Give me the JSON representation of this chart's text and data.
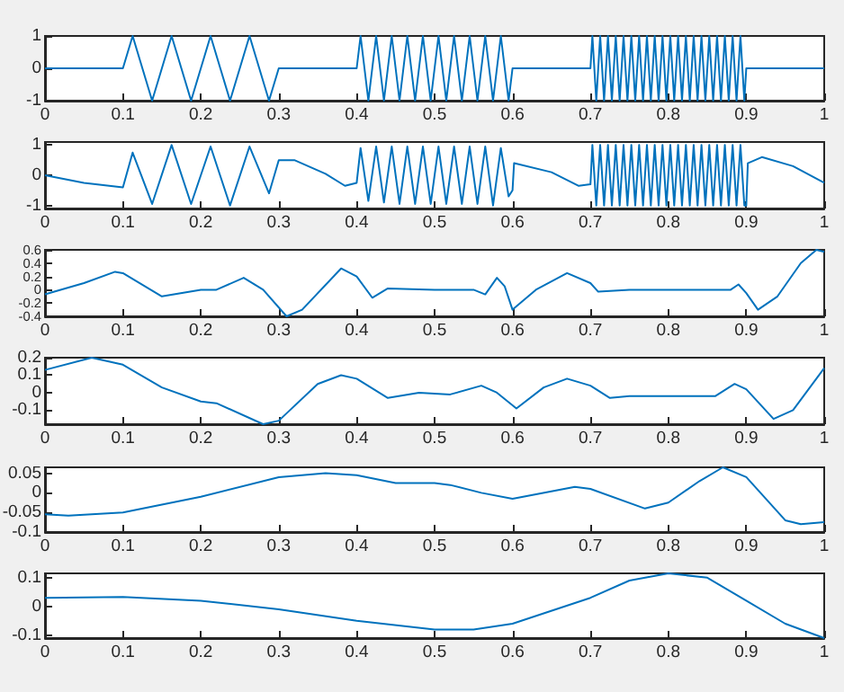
{
  "chart_data": [
    {
      "type": "line",
      "color": "#0072bd",
      "xlim": [
        0,
        1
      ],
      "xticks": [
        0,
        0.1,
        0.2,
        0.3,
        0.4,
        0.5,
        0.6,
        0.7,
        0.8,
        0.9,
        1
      ],
      "ylim": [
        -1,
        1
      ],
      "yticks": [
        -1,
        0,
        1
      ],
      "grid": false,
      "marker": "none",
      "x": [
        0,
        0.1,
        0.1125,
        0.125,
        0.1375,
        0.15,
        0.1625,
        0.175,
        0.1875,
        0.2,
        0.2125,
        0.225,
        0.2375,
        0.25,
        0.2625,
        0.275,
        0.2875,
        0.3,
        0.4,
        0.405,
        0.415,
        0.425,
        0.435,
        0.445,
        0.455,
        0.465,
        0.475,
        0.485,
        0.495,
        0.505,
        0.515,
        0.525,
        0.535,
        0.545,
        0.555,
        0.565,
        0.575,
        0.585,
        0.595,
        0.6,
        0.7,
        0.7025,
        0.7075,
        0.7125,
        0.7175,
        0.7225,
        0.7275,
        0.7325,
        0.7375,
        0.7425,
        0.7475,
        0.7525,
        0.7575,
        0.7625,
        0.7675,
        0.7725,
        0.7775,
        0.7825,
        0.7875,
        0.7925,
        0.7975,
        0.8025,
        0.8075,
        0.8125,
        0.8175,
        0.8225,
        0.8275,
        0.8325,
        0.8375,
        0.8425,
        0.8475,
        0.8525,
        0.8575,
        0.8625,
        0.8675,
        0.8725,
        0.8775,
        0.8825,
        0.8875,
        0.8925,
        0.8975,
        0.9,
        1
      ],
      "values": [
        0,
        0,
        1,
        0,
        -1,
        0,
        1,
        0,
        -1,
        0,
        1,
        0,
        -1,
        0,
        1,
        0,
        -1,
        0,
        0,
        1,
        -1,
        1,
        -1,
        1,
        -1,
        1,
        -1,
        1,
        -1,
        1,
        -1,
        1,
        -1,
        1,
        -1,
        1,
        -1,
        1,
        -1,
        0,
        0,
        1,
        -1,
        1,
        -1,
        1,
        -1,
        1,
        -1,
        1,
        -1,
        1,
        -1,
        1,
        -1,
        1,
        -1,
        1,
        -1,
        1,
        -1,
        1,
        -1,
        1,
        -1,
        1,
        -1,
        1,
        -1,
        1,
        -1,
        1,
        -1,
        1,
        -1,
        1,
        -1,
        1,
        -1,
        1,
        -1,
        0,
        0
      ]
    },
    {
      "type": "line",
      "color": "#0072bd",
      "xlim": [
        0,
        1
      ],
      "xticks": [
        0,
        0.1,
        0.2,
        0.3,
        0.4,
        0.5,
        0.6,
        0.7,
        0.8,
        0.9,
        1
      ],
      "ylim": [
        -1.1,
        1.1
      ],
      "yticks": [
        -1,
        0,
        1
      ],
      "grid": false,
      "marker": "none",
      "x": [
        0,
        0.05,
        0.1,
        0.1125,
        0.1375,
        0.1625,
        0.1875,
        0.2125,
        0.2375,
        0.2625,
        0.2875,
        0.3,
        0.32,
        0.36,
        0.385,
        0.4,
        0.405,
        0.415,
        0.425,
        0.435,
        0.445,
        0.455,
        0.465,
        0.475,
        0.485,
        0.495,
        0.505,
        0.515,
        0.525,
        0.535,
        0.545,
        0.555,
        0.565,
        0.575,
        0.585,
        0.595,
        0.6,
        0.602,
        0.65,
        0.685,
        0.7,
        0.7025,
        0.7075,
        0.7125,
        0.7175,
        0.7225,
        0.7275,
        0.7325,
        0.7375,
        0.7425,
        0.7475,
        0.7525,
        0.7575,
        0.7625,
        0.7675,
        0.7725,
        0.7775,
        0.7825,
        0.7875,
        0.7925,
        0.7975,
        0.8025,
        0.8075,
        0.8125,
        0.8175,
        0.8225,
        0.8275,
        0.8325,
        0.8375,
        0.8425,
        0.8475,
        0.8525,
        0.8575,
        0.8625,
        0.8675,
        0.8725,
        0.8775,
        0.8825,
        0.8875,
        0.8925,
        0.8975,
        0.9,
        0.902,
        0.92,
        0.96,
        1
      ],
      "values": [
        0,
        -0.25,
        -0.4,
        0.75,
        -0.95,
        1,
        -0.95,
        0.95,
        -1,
        0.95,
        -0.6,
        0.5,
        0.5,
        0.05,
        -0.35,
        -0.25,
        0.9,
        -0.85,
        0.95,
        -0.9,
        0.95,
        -0.95,
        0.95,
        -0.95,
        0.95,
        -0.95,
        0.95,
        -0.95,
        0.95,
        -0.95,
        0.95,
        -0.95,
        0.95,
        -1,
        0.9,
        -0.7,
        -0.5,
        0.4,
        0.1,
        -0.35,
        -0.3,
        1,
        -1,
        1,
        -1,
        1,
        -1,
        1,
        -1,
        1,
        -1,
        1,
        -1,
        1,
        -1,
        1,
        -1,
        1,
        -1,
        1,
        -1,
        1,
        -1,
        1,
        -1,
        1,
        -1,
        1,
        -1,
        1,
        -1,
        1,
        -1,
        1,
        -1,
        1,
        -1,
        1,
        -1,
        1,
        -1,
        -1,
        0.4,
        0.6,
        0.3,
        -0.25
      ]
    },
    {
      "type": "line",
      "color": "#0072bd",
      "xlim": [
        0,
        1
      ],
      "xticks": [
        0,
        0.1,
        0.2,
        0.3,
        0.4,
        0.5,
        0.6,
        0.7,
        0.8,
        0.9,
        1
      ],
      "ylim": [
        -0.4,
        0.6
      ],
      "yticks": [
        -0.4,
        -0.2,
        0,
        0.2,
        0.4,
        0.6
      ],
      "grid": false,
      "marker": "none",
      "x": [
        0,
        0.05,
        0.09,
        0.1,
        0.15,
        0.2,
        0.22,
        0.255,
        0.28,
        0.31,
        0.33,
        0.38,
        0.4,
        0.42,
        0.44,
        0.5,
        0.55,
        0.565,
        0.58,
        0.59,
        0.6,
        0.63,
        0.67,
        0.7,
        0.71,
        0.75,
        0.88,
        0.89,
        0.9,
        0.915,
        0.94,
        0.97,
        0.99,
        1
      ],
      "values": [
        -0.07,
        0.1,
        0.27,
        0.25,
        -0.1,
        0,
        0,
        0.18,
        0,
        -0.4,
        -0.3,
        0.32,
        0.2,
        -0.12,
        0.02,
        0,
        0,
        -0.07,
        0.18,
        0.05,
        -0.3,
        0,
        0.25,
        0.1,
        -0.03,
        0,
        0,
        0.08,
        -0.05,
        -0.3,
        -0.1,
        0.4,
        0.6,
        0.57
      ]
    },
    {
      "type": "line",
      "color": "#0072bd",
      "xlim": [
        0,
        1
      ],
      "xticks": [
        0,
        0.1,
        0.2,
        0.3,
        0.4,
        0.5,
        0.6,
        0.7,
        0.8,
        0.9,
        1
      ],
      "ylim": [
        -0.18,
        0.2
      ],
      "yticks": [
        -0.1,
        0,
        0.1,
        0.2
      ],
      "grid": false,
      "marker": "none",
      "x": [
        0,
        0.06,
        0.1,
        0.15,
        0.2,
        0.22,
        0.28,
        0.3,
        0.35,
        0.38,
        0.4,
        0.44,
        0.48,
        0.52,
        0.56,
        0.58,
        0.605,
        0.64,
        0.67,
        0.7,
        0.725,
        0.75,
        0.86,
        0.885,
        0.9,
        0.935,
        0.96,
        1
      ],
      "values": [
        0.13,
        0.2,
        0.16,
        0.03,
        -0.05,
        -0.06,
        -0.18,
        -0.16,
        0.05,
        0.1,
        0.08,
        -0.03,
        0,
        -0.01,
        0.04,
        0,
        -0.09,
        0.03,
        0.08,
        0.04,
        -0.03,
        -0.02,
        -0.02,
        0.05,
        0.02,
        -0.15,
        -0.1,
        0.14
      ]
    },
    {
      "type": "line",
      "color": "#0072bd",
      "xlim": [
        0,
        1
      ],
      "xticks": [
        0,
        0.1,
        0.2,
        0.3,
        0.4,
        0.5,
        0.6,
        0.7,
        0.8,
        0.9,
        1
      ],
      "ylim": [
        -0.1,
        0.065
      ],
      "yticks": [
        -0.1,
        -0.05,
        0,
        0.05
      ],
      "grid": false,
      "marker": "none",
      "x": [
        0,
        0.03,
        0.1,
        0.2,
        0.3,
        0.36,
        0.4,
        0.45,
        0.5,
        0.52,
        0.56,
        0.6,
        0.68,
        0.7,
        0.77,
        0.8,
        0.84,
        0.87,
        0.9,
        0.95,
        0.97,
        1
      ],
      "values": [
        -0.055,
        -0.058,
        -0.05,
        -0.01,
        0.04,
        0.05,
        0.045,
        0.025,
        0.025,
        0.02,
        0,
        -0.015,
        0.015,
        0.01,
        -0.04,
        -0.025,
        0.03,
        0.065,
        0.04,
        -0.07,
        -0.08,
        -0.075
      ]
    },
    {
      "type": "line",
      "color": "#0072bd",
      "xlim": [
        0,
        1
      ],
      "xticks": [
        0,
        0.1,
        0.2,
        0.3,
        0.4,
        0.5,
        0.6,
        0.7,
        0.8,
        0.9,
        1
      ],
      "ylim": [
        -0.11,
        0.115
      ],
      "yticks": [
        -0.1,
        0,
        0.1
      ],
      "grid": false,
      "marker": "none",
      "x": [
        0,
        0.1,
        0.2,
        0.3,
        0.4,
        0.5,
        0.55,
        0.6,
        0.7,
        0.75,
        0.8,
        0.85,
        0.9,
        0.95,
        1
      ],
      "values": [
        0.03,
        0.033,
        0.02,
        -0.01,
        -0.05,
        -0.08,
        -0.08,
        -0.06,
        0.03,
        0.09,
        0.115,
        0.1,
        0.02,
        -0.06,
        -0.11
      ]
    }
  ]
}
